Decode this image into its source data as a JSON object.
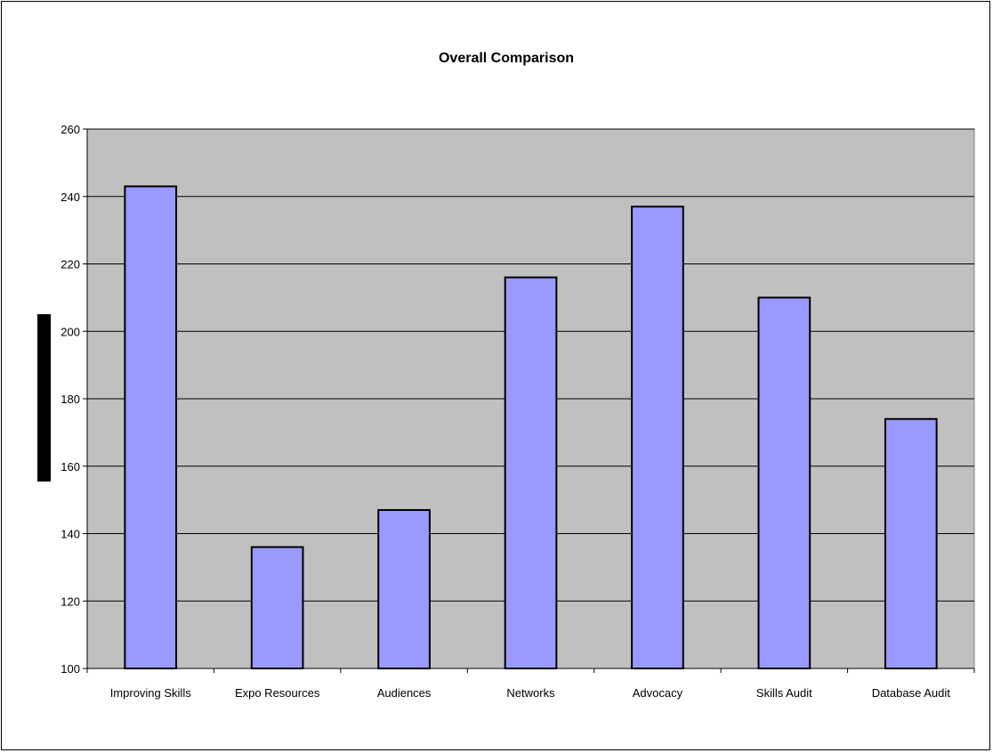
{
  "chart_data": {
    "type": "bar",
    "title": "Overall Comparison",
    "categories": [
      "Improving Skills",
      "Expo Resources",
      "Audiences",
      "Networks",
      "Advocacy",
      "Skills Audit",
      "Database Audit"
    ],
    "values": [
      243,
      136,
      147,
      216,
      237,
      210,
      174
    ],
    "xlabel": "",
    "ylabel": "",
    "ylim": [
      100,
      260
    ],
    "yticks": [
      100,
      120,
      140,
      160,
      180,
      200,
      220,
      240,
      260
    ],
    "grid": true,
    "colors": {
      "bar": "#9999ff",
      "plot_bg": "#c0c0c0",
      "bar_stroke": "#000000",
      "label_box": "#000000"
    }
  }
}
